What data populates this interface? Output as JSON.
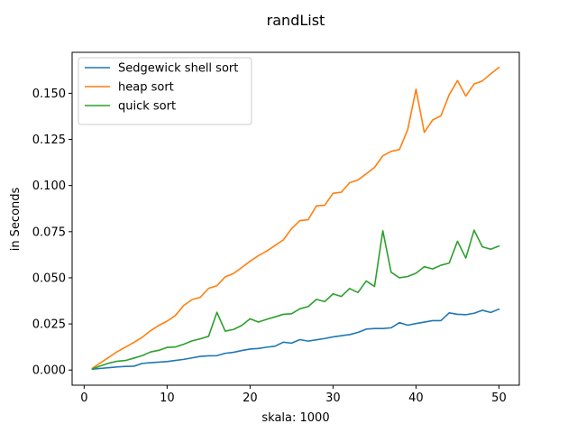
{
  "chart_data": {
    "type": "line",
    "title": "randList",
    "xlabel": "skala: 1000",
    "ylabel": "in Seconds",
    "xlim": [
      -1.45,
      52.45
    ],
    "ylim": [
      -0.0082,
      0.1722
    ],
    "xticks": [
      0,
      10,
      20,
      30,
      40,
      50
    ],
    "xtick_labels": [
      "0",
      "10",
      "20",
      "30",
      "40",
      "50"
    ],
    "yticks": [
      0.0,
      0.025,
      0.05,
      0.075,
      0.1,
      0.125,
      0.15
    ],
    "ytick_labels": [
      "0.000",
      "0.025",
      "0.050",
      "0.075",
      "0.100",
      "0.125",
      "0.150"
    ],
    "grid": false,
    "legend_position": "upper-left",
    "x": [
      1,
      2,
      3,
      4,
      5,
      6,
      7,
      8,
      9,
      10,
      11,
      12,
      13,
      14,
      15,
      16,
      17,
      18,
      19,
      20,
      21,
      22,
      23,
      24,
      25,
      26,
      27,
      28,
      29,
      30,
      31,
      32,
      33,
      34,
      35,
      36,
      37,
      38,
      39,
      40,
      41,
      42,
      43,
      44,
      45,
      46,
      47,
      48,
      49,
      50
    ],
    "series": [
      {
        "name": "Sedgewick shell sort",
        "color": "#1f77b4",
        "values": [
          0.0005,
          0.0009,
          0.0013,
          0.0017,
          0.002,
          0.0021,
          0.0036,
          0.004,
          0.0043,
          0.0046,
          0.0052,
          0.0058,
          0.0066,
          0.0074,
          0.0077,
          0.0078,
          0.0091,
          0.0096,
          0.0106,
          0.0114,
          0.0117,
          0.0124,
          0.0129,
          0.0151,
          0.0146,
          0.0165,
          0.0157,
          0.0164,
          0.0171,
          0.018,
          0.0186,
          0.0192,
          0.0204,
          0.0222,
          0.0225,
          0.0225,
          0.0229,
          0.0257,
          0.0243,
          0.0252,
          0.026,
          0.0268,
          0.0268,
          0.031,
          0.0302,
          0.03,
          0.0308,
          0.0324,
          0.0312,
          0.033
        ]
      },
      {
        "name": "heap sort",
        "color": "#ff7f0e",
        "values": [
          0.001,
          0.004,
          0.007,
          0.01,
          0.0125,
          0.015,
          0.0178,
          0.0213,
          0.0242,
          0.0265,
          0.0296,
          0.035,
          0.0382,
          0.0394,
          0.0443,
          0.0457,
          0.0505,
          0.0523,
          0.0556,
          0.059,
          0.062,
          0.0645,
          0.0675,
          0.0705,
          0.0766,
          0.081,
          0.0815,
          0.089,
          0.0893,
          0.0958,
          0.0964,
          0.1015,
          0.103,
          0.1064,
          0.1098,
          0.1161,
          0.1185,
          0.1195,
          0.1303,
          0.1522,
          0.1288,
          0.1355,
          0.1378,
          0.1492,
          0.1569,
          0.1485,
          0.155,
          0.1567,
          0.1605,
          0.164
        ]
      },
      {
        "name": "quick sort",
        "color": "#2ca02c",
        "values": [
          0.0006,
          0.0023,
          0.0038,
          0.0048,
          0.0052,
          0.0065,
          0.0078,
          0.0098,
          0.0107,
          0.0123,
          0.0125,
          0.014,
          0.0158,
          0.0169,
          0.0183,
          0.0313,
          0.0211,
          0.022,
          0.0242,
          0.0278,
          0.026,
          0.0275,
          0.0288,
          0.0302,
          0.0305,
          0.0332,
          0.0344,
          0.0383,
          0.0371,
          0.0413,
          0.0399,
          0.0442,
          0.042,
          0.0483,
          0.0453,
          0.0755,
          0.053,
          0.05,
          0.0507,
          0.0525,
          0.056,
          0.0548,
          0.0568,
          0.058,
          0.0698,
          0.0607,
          0.0758,
          0.0668,
          0.0655,
          0.0672
        ]
      }
    ]
  }
}
